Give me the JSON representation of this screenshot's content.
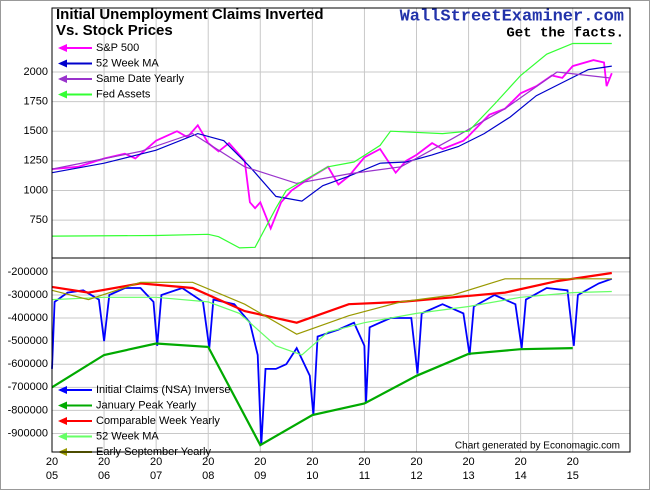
{
  "chart_data": [
    {
      "type": "line",
      "title": [
        "Initial Unemployment Claims Inverted",
        "Vs. Stock Prices"
      ],
      "annotations": [
        "WallStreetExaminer.com",
        "Get the facts."
      ],
      "xlim": [
        2005,
        2016.1
      ],
      "ylim": [
        430,
        2540
      ],
      "yticks": [
        750,
        1000,
        1250,
        1500,
        1750,
        2000
      ],
      "grid": true,
      "legend": "upper left",
      "series": [
        {
          "name": "S&P 500",
          "color": "#ff00ff",
          "x": [
            2005.0,
            2005.5,
            2006.0,
            2006.4,
            2006.6,
            2007.0,
            2007.4,
            2007.6,
            2007.8,
            2008.0,
            2008.2,
            2008.4,
            2008.7,
            2008.8,
            2008.9,
            2009.0,
            2009.2,
            2009.4,
            2009.6,
            2009.8,
            2010.0,
            2010.3,
            2010.5,
            2010.7,
            2011.0,
            2011.3,
            2011.6,
            2011.8,
            2012.0,
            2012.3,
            2012.5,
            2012.9,
            2013.0,
            2013.4,
            2013.7,
            2014.0,
            2014.3,
            2014.6,
            2014.8,
            2015.0,
            2015.4,
            2015.6,
            2015.65,
            2015.75
          ],
          "values": [
            1180,
            1200,
            1270,
            1310,
            1270,
            1420,
            1500,
            1450,
            1550,
            1400,
            1330,
            1400,
            1250,
            900,
            850,
            900,
            680,
            900,
            1000,
            1060,
            1120,
            1200,
            1050,
            1120,
            1280,
            1350,
            1150,
            1250,
            1300,
            1400,
            1350,
            1420,
            1460,
            1640,
            1690,
            1820,
            1880,
            1970,
            1950,
            2050,
            2100,
            2080,
            1880,
            1990
          ]
        },
        {
          "name": "52 Week MA",
          "color": "#0000cc",
          "x": [
            2005.0,
            2006.0,
            2007.0,
            2007.8,
            2008.3,
            2008.8,
            2009.3,
            2009.8,
            2010.2,
            2010.7,
            2011.3,
            2011.8,
            2012.3,
            2012.8,
            2013.3,
            2013.8,
            2014.3,
            2014.8,
            2015.3,
            2015.75
          ],
          "values": [
            1150,
            1230,
            1340,
            1480,
            1420,
            1200,
            950,
            910,
            1040,
            1120,
            1230,
            1240,
            1300,
            1370,
            1480,
            1620,
            1800,
            1910,
            2020,
            2050
          ]
        },
        {
          "name": "Same Date Yearly",
          "color": "#9933cc",
          "x": [
            2005.0,
            2006.7,
            2007.7,
            2008.7,
            2009.7,
            2010.7,
            2011.7,
            2012.7,
            2013.7,
            2014.7,
            2015.7
          ],
          "values": [
            1180,
            1330,
            1480,
            1200,
            1060,
            1140,
            1200,
            1440,
            1690,
            2000,
            1950
          ]
        },
        {
          "name": "Fed Assets",
          "color": "#33ff33",
          "x": [
            2005.0,
            2007.0,
            2008.0,
            2008.2,
            2008.6,
            2008.9,
            2009.3,
            2009.5,
            2009.9,
            2010.3,
            2010.8,
            2011.3,
            2011.5,
            2012.5,
            2013.0,
            2013.5,
            2014.0,
            2014.5,
            2015.0,
            2015.75
          ],
          "values": [
            615,
            620,
            630,
            610,
            515,
            520,
            850,
            1000,
            1100,
            1200,
            1240,
            1380,
            1500,
            1480,
            1500,
            1730,
            1970,
            2150,
            2240,
            2240
          ]
        }
      ]
    },
    {
      "type": "line",
      "annotations": [
        "Chart generated by Economagic.com"
      ],
      "xlim": [
        2005,
        2016.1
      ],
      "ylim": [
        -980000,
        -140000
      ],
      "yticks": [
        -900000,
        -800000,
        -700000,
        -600000,
        -500000,
        -400000,
        -300000,
        -200000
      ],
      "xticks": [
        {
          "value": 2005,
          "label": [
            "20",
            "05"
          ]
        },
        {
          "value": 2006,
          "label": [
            "20",
            "06"
          ]
        },
        {
          "value": 2007,
          "label": [
            "20",
            "07"
          ]
        },
        {
          "value": 2008,
          "label": [
            "20",
            "08"
          ]
        },
        {
          "value": 2009,
          "label": [
            "20",
            "09"
          ]
        },
        {
          "value": 2010,
          "label": [
            "20",
            "10"
          ]
        },
        {
          "value": 2011,
          "label": [
            "20",
            "11"
          ]
        },
        {
          "value": 2012,
          "label": [
            "20",
            "12"
          ]
        },
        {
          "value": 2013,
          "label": [
            "20",
            "13"
          ]
        },
        {
          "value": 2014,
          "label": [
            "20",
            "14"
          ]
        },
        {
          "value": 2015,
          "label": [
            "20",
            "15"
          ]
        }
      ],
      "grid": true,
      "legend": "lower left",
      "series": [
        {
          "name": "Initial Claims (NSA) Inverse",
          "color": "#0000ff",
          "x": [
            2005.0,
            2005.05,
            2005.3,
            2005.6,
            2005.9,
            2006.0,
            2006.1,
            2006.4,
            2006.7,
            2006.95,
            2007.02,
            2007.1,
            2007.5,
            2007.9,
            2008.02,
            2008.1,
            2008.5,
            2008.8,
            2008.95,
            2009.02,
            2009.1,
            2009.3,
            2009.5,
            2009.7,
            2009.95,
            2010.02,
            2010.1,
            2010.5,
            2010.8,
            2011.0,
            2011.03,
            2011.1,
            2011.5,
            2011.9,
            2012.02,
            2012.1,
            2012.5,
            2012.9,
            2013.02,
            2013.1,
            2013.5,
            2013.9,
            2014.02,
            2014.1,
            2014.5,
            2014.9,
            2015.02,
            2015.1,
            2015.5,
            2015.75
          ],
          "values": [
            -620000,
            -330000,
            -290000,
            -280000,
            -320000,
            -500000,
            -300000,
            -270000,
            -270000,
            -330000,
            -520000,
            -300000,
            -270000,
            -330000,
            -530000,
            -320000,
            -340000,
            -420000,
            -560000,
            -950000,
            -620000,
            -620000,
            -600000,
            -530000,
            -650000,
            -820000,
            -480000,
            -450000,
            -420000,
            -520000,
            -770000,
            -440000,
            -400000,
            -400000,
            -640000,
            -380000,
            -340000,
            -380000,
            -560000,
            -350000,
            -300000,
            -340000,
            -530000,
            -320000,
            -270000,
            -280000,
            -520000,
            -300000,
            -250000,
            -230000
          ]
        },
        {
          "name": "January Peak Yearly",
          "color": "#00aa00",
          "x": [
            2005.0,
            2006.0,
            2007.0,
            2008.0,
            2009.0,
            2010.0,
            2011.0,
            2012.0,
            2013.0,
            2014.0,
            2015.0
          ],
          "values": [
            -700000,
            -560000,
            -510000,
            -525000,
            -950000,
            -820000,
            -770000,
            -650000,
            -555000,
            -535000,
            -530000
          ]
        },
        {
          "name": "Comparable Week Yearly",
          "color": "#ff0000",
          "x": [
            2005.0,
            2005.7,
            2006.7,
            2007.7,
            2008.7,
            2009.7,
            2010.7,
            2011.7,
            2012.7,
            2013.7,
            2014.7,
            2015.75
          ],
          "values": [
            -265000,
            -290000,
            -250000,
            -270000,
            -370000,
            -420000,
            -340000,
            -330000,
            -310000,
            -290000,
            -240000,
            -205000
          ]
        },
        {
          "name": "52 Week MA",
          "color": "#66ff66",
          "x": [
            2005.0,
            2006.0,
            2007.0,
            2008.0,
            2008.6,
            2009.3,
            2009.8,
            2010.3,
            2011.0,
            2012.0,
            2013.0,
            2014.0,
            2015.0,
            2015.75
          ],
          "values": [
            -320000,
            -310000,
            -310000,
            -330000,
            -380000,
            -520000,
            -560000,
            -460000,
            -420000,
            -380000,
            -350000,
            -310000,
            -290000,
            -285000
          ]
        },
        {
          "name": "Early September Yearly",
          "color": "#999900",
          "x": [
            2005.0,
            2005.7,
            2006.7,
            2007.7,
            2008.7,
            2009.7,
            2010.7,
            2011.7,
            2012.7,
            2013.7,
            2014.7,
            2015.75
          ],
          "values": [
            -280000,
            -320000,
            -245000,
            -245000,
            -340000,
            -470000,
            -390000,
            -330000,
            -300000,
            -230000,
            -230000,
            -230000
          ]
        }
      ]
    }
  ]
}
